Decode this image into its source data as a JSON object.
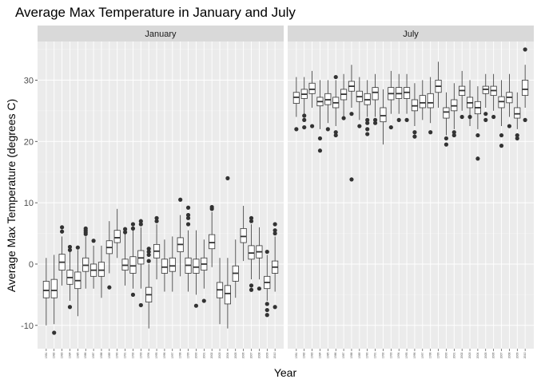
{
  "chart_data": {
    "type": "boxplot",
    "title": "Average Max Temperature in January and July",
    "xlabel": "Year",
    "ylabel": "Average Max Temperature (degrees C)",
    "ylim": [
      -13.8,
      36.3
    ],
    "yticks": [
      -10,
      0,
      10,
      20,
      30
    ],
    "grid": true,
    "facets": [
      {
        "name": "January",
        "years": [
          "1981",
          "1982",
          "1983",
          "1984",
          "1985",
          "1986",
          "1987",
          "1988",
          "1989",
          "1990",
          "1991",
          "1992",
          "1993",
          "1994",
          "1995",
          "1996",
          "1997",
          "1998",
          "1999",
          "2000",
          "2001",
          "2002",
          "2003",
          "2004",
          "2005",
          "2006",
          "2007",
          "2008",
          "2009",
          "2010"
        ],
        "boxes": [
          {
            "year": "1981",
            "low": -10,
            "q1": -5.5,
            "median": -4.3,
            "q3": -2.8,
            "high": 1,
            "outliers": []
          },
          {
            "year": "1982",
            "low": -9.8,
            "q1": -5.5,
            "median": -4.3,
            "q3": -2.5,
            "high": 1.5,
            "outliers": [
              -11.2
            ]
          },
          {
            "year": "1983",
            "low": -3.5,
            "q1": -1,
            "median": 0.3,
            "q3": 1.6,
            "high": 4.5,
            "outliers": [
              6,
              5.3
            ]
          },
          {
            "year": "1984",
            "low": -6,
            "q1": -3.3,
            "median": -2.2,
            "q3": -1,
            "high": 2,
            "outliers": [
              2.8,
              2.3,
              -7
            ]
          },
          {
            "year": "1985",
            "low": -8.5,
            "q1": -4,
            "median": -2.7,
            "q3": -1.3,
            "high": 2.3,
            "outliers": [
              2.7
            ]
          },
          {
            "year": "1986",
            "low": -4,
            "q1": -1.2,
            "median": -0.2,
            "q3": 1,
            "high": 4.5,
            "outliers": [
              5.8,
              5.5,
              5.2,
              4.9
            ]
          },
          {
            "year": "1987",
            "low": -4,
            "q1": -2,
            "median": -1,
            "q3": 0,
            "high": 3,
            "outliers": [
              3.8
            ]
          },
          {
            "year": "1988",
            "low": -5.5,
            "q1": -2,
            "median": -1,
            "q3": 0.3,
            "high": 3,
            "outliers": []
          },
          {
            "year": "1989",
            "low": -1.5,
            "q1": 1.7,
            "median": 2.7,
            "q3": 3.8,
            "high": 7,
            "outliers": [
              -3.8
            ]
          },
          {
            "year": "1990",
            "low": 1,
            "q1": 3.5,
            "median": 4.3,
            "q3": 5.5,
            "high": 9,
            "outliers": []
          },
          {
            "year": "1991",
            "low": -3.5,
            "q1": -1,
            "median": -0.2,
            "q3": 0.8,
            "high": 5,
            "outliers": [
              5.7,
              5.2
            ]
          },
          {
            "year": "1992",
            "low": -4,
            "q1": -1.5,
            "median": -0.3,
            "q3": 1.2,
            "high": 5.5,
            "outliers": [
              6.5,
              5.8,
              -5
            ]
          },
          {
            "year": "1993",
            "low": -4,
            "q1": 0,
            "median": 1,
            "q3": 2.2,
            "high": 6,
            "outliers": [
              7,
              6.5,
              -6.7
            ]
          },
          {
            "year": "1994",
            "low": -10.5,
            "q1": -6.2,
            "median": -5,
            "q3": -3.8,
            "high": 0,
            "outliers": [
              0.5,
              1.5,
              2,
              2.5
            ]
          },
          {
            "year": "1995",
            "low": -2.5,
            "q1": 1,
            "median": 2.1,
            "q3": 3.2,
            "high": 6.5,
            "outliers": [
              7.5,
              7
            ]
          },
          {
            "year": "1996",
            "low": -4.5,
            "q1": -1.5,
            "median": -0.5,
            "q3": 0.8,
            "high": 4,
            "outliers": []
          },
          {
            "year": "1997",
            "low": -4.5,
            "q1": -1.2,
            "median": -0.3,
            "q3": 1,
            "high": 4.5,
            "outliers": []
          },
          {
            "year": "1998",
            "low": -2,
            "q1": 2,
            "median": 3.2,
            "q3": 4.3,
            "high": 8,
            "outliers": [
              10.5
            ]
          },
          {
            "year": "1999",
            "low": -4.5,
            "q1": -1.5,
            "median": -0.2,
            "q3": 1,
            "high": 5.5,
            "outliers": [
              9.2,
              8,
              7.5,
              6.5
            ]
          },
          {
            "year": "2000",
            "low": -5,
            "q1": -1.5,
            "median": -0.5,
            "q3": 0.8,
            "high": 5.5,
            "outliers": [
              -6.8
            ]
          },
          {
            "year": "2001",
            "low": -4,
            "q1": -1,
            "median": 0,
            "q3": 1,
            "high": 4,
            "outliers": [
              -6
            ]
          },
          {
            "year": "2002",
            "low": -0.5,
            "q1": 2.5,
            "median": 3.5,
            "q3": 4.8,
            "high": 8.5,
            "outliers": [
              9.3,
              9
            ]
          },
          {
            "year": "2003",
            "low": -9.8,
            "q1": -5.5,
            "median": -4.2,
            "q3": -3,
            "high": 1,
            "outliers": []
          },
          {
            "year": "2004",
            "low": -10.5,
            "q1": -6.5,
            "median": -4.8,
            "q3": -3.5,
            "high": 1,
            "outliers": [
              14
            ]
          },
          {
            "year": "2005",
            "low": -5.5,
            "q1": -2.8,
            "median": -1.5,
            "q3": -0.3,
            "high": 4,
            "outliers": []
          },
          {
            "year": "2006",
            "low": 0.5,
            "q1": 3.5,
            "median": 4.5,
            "q3": 5.8,
            "high": 9.5,
            "outliers": []
          },
          {
            "year": "2007",
            "low": -2.5,
            "q1": 0.8,
            "median": 1.8,
            "q3": 3,
            "high": 6.5,
            "outliers": [
              7.5,
              7,
              -3.5,
              -4.2
            ]
          },
          {
            "year": "2008",
            "low": -2.5,
            "q1": 1,
            "median": 2,
            "q3": 3,
            "high": 6,
            "outliers": [
              -4
            ]
          },
          {
            "year": "2009",
            "low": -6,
            "q1": -4,
            "median": -3,
            "q3": -2,
            "high": 1.5,
            "outliers": [
              2,
              -6.5,
              -7.5,
              -8.3
            ]
          },
          {
            "year": "2010",
            "low": -4.5,
            "q1": -1.5,
            "median": -0.5,
            "q3": 0.5,
            "high": 4.5,
            "outliers": [
              6.5,
              5.5,
              5,
              -7
            ]
          }
        ]
      },
      {
        "name": "July",
        "years": [
          "1981",
          "1982",
          "1983",
          "1984",
          "1985",
          "1986",
          "1987",
          "1988",
          "1989",
          "1990",
          "1991",
          "1992",
          "1993",
          "1994",
          "1995",
          "1996",
          "1997",
          "1998",
          "1999",
          "2000",
          "2001",
          "2002",
          "2003",
          "2004",
          "2005",
          "2006",
          "2007",
          "2008",
          "2009",
          "2010"
        ],
        "boxes": [
          {
            "year": "1981",
            "low": 24,
            "q1": 26.2,
            "median": 27.2,
            "q3": 28,
            "high": 30.5,
            "outliers": [
              22
            ]
          },
          {
            "year": "1982",
            "low": 24.5,
            "q1": 27,
            "median": 27.7,
            "q3": 28.5,
            "high": 30.5,
            "outliers": [
              24.2,
              23.5,
              22.3
            ]
          },
          {
            "year": "1983",
            "low": 25.5,
            "q1": 27.8,
            "median": 28.5,
            "q3": 29.5,
            "high": 31.5,
            "outliers": [
              22.5
            ]
          },
          {
            "year": "1984",
            "low": 22,
            "q1": 25.8,
            "median": 26.5,
            "q3": 27.2,
            "high": 30,
            "outliers": [
              20.5,
              18.5
            ]
          },
          {
            "year": "1985",
            "low": 23,
            "q1": 26,
            "median": 26.8,
            "q3": 27.8,
            "high": 30,
            "outliers": [
              22
            ]
          },
          {
            "year": "1986",
            "low": 22.5,
            "q1": 25.5,
            "median": 26.3,
            "q3": 27.2,
            "high": 30,
            "outliers": [
              30.5,
              21.5,
              21
            ]
          },
          {
            "year": "1987",
            "low": 24,
            "q1": 26.8,
            "median": 27.7,
            "q3": 28.5,
            "high": 31,
            "outliers": [
              23.8
            ]
          },
          {
            "year": "1988",
            "low": 25.5,
            "q1": 28.2,
            "median": 29,
            "q3": 29.8,
            "high": 32.5,
            "outliers": [
              24.5,
              13.8
            ]
          },
          {
            "year": "1989",
            "low": 23.5,
            "q1": 26.5,
            "median": 27.3,
            "q3": 28.2,
            "high": 30.5,
            "outliers": [
              22.5
            ]
          },
          {
            "year": "1990",
            "low": 24,
            "q1": 26,
            "median": 26.8,
            "q3": 27.8,
            "high": 30,
            "outliers": [
              23.5,
              23,
              22,
              21.2
            ]
          },
          {
            "year": "1991",
            "low": 24,
            "q1": 26.8,
            "median": 28,
            "q3": 28.8,
            "high": 31,
            "outliers": [
              23.5,
              23
            ]
          },
          {
            "year": "1992",
            "low": 19.5,
            "q1": 23.2,
            "median": 24.2,
            "q3": 25.5,
            "high": 28.5,
            "outliers": []
          },
          {
            "year": "1993",
            "low": 24.5,
            "q1": 26.8,
            "median": 27.8,
            "q3": 28.8,
            "high": 31.5,
            "outliers": [
              22.3
            ]
          },
          {
            "year": "1994",
            "low": 24.5,
            "q1": 27,
            "median": 27.8,
            "q3": 28.8,
            "high": 31,
            "outliers": [
              23.5
            ]
          },
          {
            "year": "1995",
            "low": 24.5,
            "q1": 27,
            "median": 28,
            "q3": 28.8,
            "high": 31,
            "outliers": [
              23.5
            ]
          },
          {
            "year": "1996",
            "low": 22.5,
            "q1": 25,
            "median": 25.8,
            "q3": 26.8,
            "high": 29.5,
            "outliers": [
              21.5,
              20.8
            ]
          },
          {
            "year": "1997",
            "low": 23.5,
            "q1": 25.5,
            "median": 26.3,
            "q3": 27.5,
            "high": 30,
            "outliers": []
          },
          {
            "year": "1998",
            "low": 23,
            "q1": 25.5,
            "median": 26.3,
            "q3": 27.8,
            "high": 30.5,
            "outliers": [
              21.5
            ]
          },
          {
            "year": "1999",
            "low": 25.5,
            "q1": 28,
            "median": 29,
            "q3": 30,
            "high": 33,
            "outliers": []
          },
          {
            "year": "2000",
            "low": 21,
            "q1": 23.8,
            "median": 24.8,
            "q3": 25.5,
            "high": 28,
            "outliers": [
              20.5,
              19.5
            ]
          },
          {
            "year": "2001",
            "low": 22,
            "q1": 25,
            "median": 25.8,
            "q3": 26.8,
            "high": 29.5,
            "outliers": [
              21.5,
              21
            ]
          },
          {
            "year": "2002",
            "low": 25,
            "q1": 27.5,
            "median": 28.3,
            "q3": 29,
            "high": 31.5,
            "outliers": [
              24
            ]
          },
          {
            "year": "2003",
            "low": 22.5,
            "q1": 25.5,
            "median": 26.3,
            "q3": 27.2,
            "high": 30,
            "outliers": [
              24
            ]
          },
          {
            "year": "2004",
            "low": 22,
            "q1": 24.5,
            "median": 25.5,
            "q3": 26.5,
            "high": 29,
            "outliers": [
              21,
              17.2
            ]
          },
          {
            "year": "2005",
            "low": 25.5,
            "q1": 27.8,
            "median": 28.5,
            "q3": 29,
            "high": 31,
            "outliers": [
              24.5,
              23.5
            ]
          },
          {
            "year": "2006",
            "low": 25,
            "q1": 27.5,
            "median": 28.3,
            "q3": 29,
            "high": 31,
            "outliers": [
              24
            ]
          },
          {
            "year": "2007",
            "low": 22.5,
            "q1": 25.5,
            "median": 26.5,
            "q3": 27.3,
            "high": 30,
            "outliers": [
              21,
              19.3
            ]
          },
          {
            "year": "2008",
            "low": 24,
            "q1": 26.3,
            "median": 27.2,
            "q3": 28,
            "high": 31,
            "outliers": [
              22.5
            ]
          },
          {
            "year": "2009",
            "low": 22,
            "q1": 23.8,
            "median": 24.5,
            "q3": 25.5,
            "high": 28,
            "outliers": [
              21,
              20.5
            ]
          },
          {
            "year": "2010",
            "low": 25.5,
            "q1": 27.5,
            "median": 28.5,
            "q3": 30,
            "high": 32.5,
            "outliers": [
              35,
              23.5
            ]
          }
        ]
      }
    ]
  }
}
